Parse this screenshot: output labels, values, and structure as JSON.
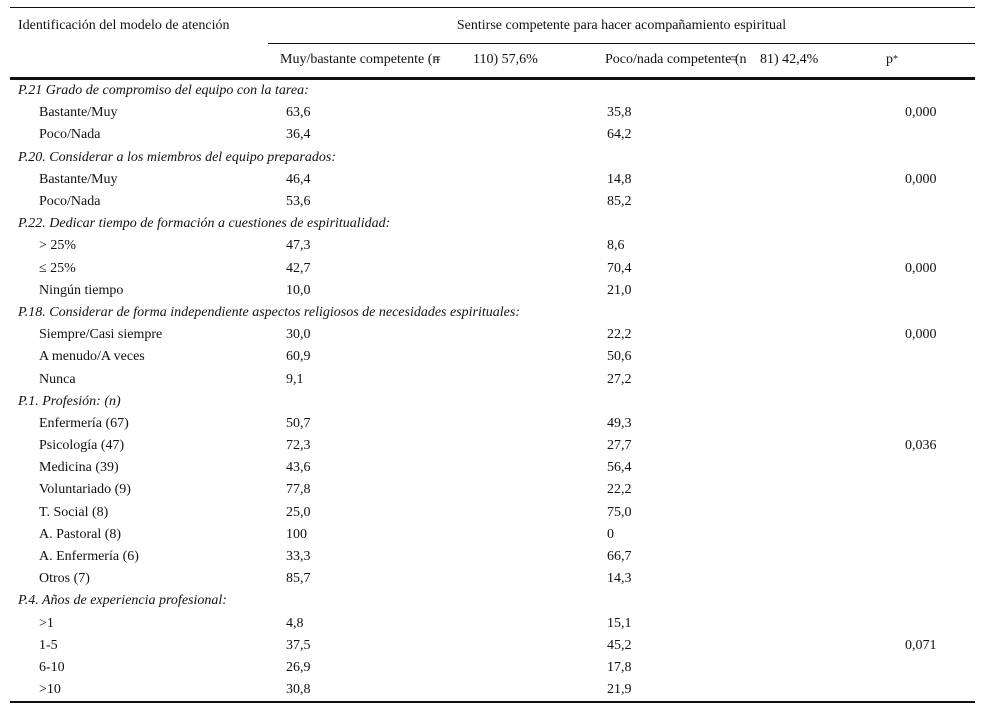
{
  "table": {
    "col1_header": "Identificación del modelo de atención",
    "span_header": "Sentirse competente para hacer acompañamiento espiritual",
    "col2_header": {
      "pre": "Muy/bastante competente (n",
      "eq": "=",
      "post": "110) 57,6%"
    },
    "col3_header": {
      "pre": "Poco/nada competente (n",
      "eq": "=",
      "post": "81) 42,4%"
    },
    "p_header": "p",
    "p_header_sup": "*",
    "rows": [
      {
        "type": "section",
        "label": "P.21 Grado de compromiso del equipo con la tarea:",
        "v1": "",
        "v2": "",
        "p": ""
      },
      {
        "type": "data",
        "label": "Bastante/Muy",
        "v1": "63,6",
        "v2": "35,8",
        "p": "0,000"
      },
      {
        "type": "data",
        "label": "Poco/Nada",
        "v1": "36,4",
        "v2": "64,2",
        "p": ""
      },
      {
        "type": "section",
        "label": "P.20. Considerar a los miembros del equipo preparados:",
        "v1": "",
        "v2": "",
        "p": ""
      },
      {
        "type": "data",
        "label": "Bastante/Muy",
        "v1": "46,4",
        "v2": "14,8",
        "p": "0,000"
      },
      {
        "type": "data",
        "label": "Poco/Nada",
        "v1": "53,6",
        "v2": "85,2",
        "p": ""
      },
      {
        "type": "section",
        "label": "P.22. Dedicar tiempo de formación a cuestiones de espiritualidad:",
        "v1": "",
        "v2": "",
        "p": ""
      },
      {
        "type": "data",
        "label": "> 25%",
        "v1": "47,3",
        "v2": "8,6",
        "p": ""
      },
      {
        "type": "data",
        "label": "≤ 25%",
        "v1": "42,7",
        "v2": "70,4",
        "p": "0,000"
      },
      {
        "type": "data",
        "label": "Ningún tiempo",
        "v1": "10,0",
        "v2": "21,0",
        "p": ""
      },
      {
        "type": "section",
        "label": "P.18. Considerar de forma independiente aspectos religiosos de necesidades espirituales:",
        "v1": "",
        "v2": "",
        "p": ""
      },
      {
        "type": "data",
        "label": "Siempre/Casi siempre",
        "v1": "30,0",
        "v2": "22,2",
        "p": "0,000"
      },
      {
        "type": "data",
        "label": "A menudo/A veces",
        "v1": "60,9",
        "v2": "50,6",
        "p": ""
      },
      {
        "type": "data",
        "label": "Nunca",
        "v1": "9,1",
        "v2": "27,2",
        "p": ""
      },
      {
        "type": "section",
        "label": "P.1. Profesión: (n)",
        "v1": "",
        "v2": "",
        "p": ""
      },
      {
        "type": "data",
        "label": "Enfermería (67)",
        "v1": "50,7",
        "v2": "49,3",
        "p": ""
      },
      {
        "type": "data",
        "label": "Psicología (47)",
        "v1": "72,3",
        "v2": "27,7",
        "p": "0,036"
      },
      {
        "type": "data",
        "label": "Medicina (39)",
        "v1": "43,6",
        "v2": "56,4",
        "p": ""
      },
      {
        "type": "data",
        "label": "Voluntariado (9)",
        "v1": "77,8",
        "v2": "22,2",
        "p": ""
      },
      {
        "type": "data",
        "label": "T. Social (8)",
        "v1": "25,0",
        "v2": "75,0",
        "p": ""
      },
      {
        "type": "data",
        "label": "A. Pastoral (8)",
        "v1": "100",
        "v2": "0",
        "p": ""
      },
      {
        "type": "data",
        "label": "A. Enfermería (6)",
        "v1": "33,3",
        "v2": "66,7",
        "p": ""
      },
      {
        "type": "data",
        "label": "Otros (7)",
        "v1": "85,7",
        "v2": "14,3",
        "p": ""
      },
      {
        "type": "section",
        "label": "P.4. Años de experiencia profesional:",
        "v1": "",
        "v2": "",
        "p": ""
      },
      {
        "type": "data",
        "label": ">1",
        "v1": "4,8",
        "v2": "15,1",
        "p": ""
      },
      {
        "type": "data",
        "label": "1-5",
        "v1": "37,5",
        "v2": "45,2",
        "p": "0,071"
      },
      {
        "type": "data",
        "label": "6-10",
        "v1": "26,9",
        "v2": "17,8",
        "p": ""
      },
      {
        "type": "data",
        "label": ">10",
        "v1": "30,8",
        "v2": "21,9",
        "p": ""
      }
    ]
  }
}
